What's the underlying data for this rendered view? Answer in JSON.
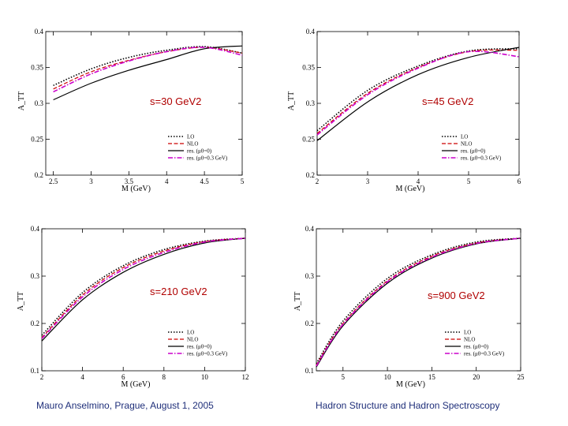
{
  "footer": {
    "author": "Mauro Anselmino",
    "place_date": "Prague, August 1, 2005",
    "conference": "Hadron Structure and Hadron Spectroscopy"
  },
  "colors": {
    "lo": "#000000",
    "nlo": "#cc0000",
    "res0": "#000000",
    "res03": "#cc00cc",
    "energy_label": "#b00000",
    "footer_text": "#1f2f7a"
  },
  "chart_data": [
    {
      "type": "line",
      "energy_label": "s=30 GeV2",
      "xlabel": "M (GeV)",
      "ylabel": "A_TT",
      "xlim": [
        2.4,
        5.0
      ],
      "ylim": [
        0.2,
        0.4
      ],
      "xticks": [
        2.5,
        3,
        3.5,
        4,
        4.5,
        5
      ],
      "xtick_labels": [
        "2.5",
        "3",
        "3.5",
        "4",
        "4.5",
        "5"
      ],
      "yticks": [
        0.2,
        0.25,
        0.3,
        0.35,
        0.4
      ],
      "ytick_labels": [
        "0.2",
        "0.25",
        "0.3",
        "0.35",
        "0.4"
      ],
      "legend": [
        "LO",
        "NLO",
        "res. (μ0=0)",
        "res. (μ0=0.3 GeV)"
      ],
      "legend_position": "lower-right",
      "series": [
        {
          "name": "LO",
          "style": "dotted",
          "x": [
            2.5,
            3.0,
            3.5,
            4.0,
            4.5,
            5.0
          ],
          "y": [
            0.325,
            0.348,
            0.364,
            0.374,
            0.379,
            0.37
          ]
        },
        {
          "name": "NLO",
          "style": "dashed",
          "x": [
            2.5,
            3.0,
            3.5,
            4.0,
            4.5,
            5.0
          ],
          "y": [
            0.32,
            0.344,
            0.36,
            0.372,
            0.378,
            0.37
          ]
        },
        {
          "name": "res. (μ0=0)",
          "style": "solid",
          "x": [
            2.5,
            3.0,
            3.5,
            4.0,
            4.5,
            5.0
          ],
          "y": [
            0.305,
            0.328,
            0.346,
            0.361,
            0.376,
            0.38
          ]
        },
        {
          "name": "res. (μ0=0.3 GeV)",
          "style": "dashdot",
          "x": [
            2.5,
            3.0,
            3.5,
            4.0,
            4.5,
            5.0
          ],
          "y": [
            0.316,
            0.341,
            0.359,
            0.372,
            0.378,
            0.367
          ]
        }
      ]
    },
    {
      "type": "line",
      "energy_label": "s=45 GeV2",
      "xlabel": "M (GeV)",
      "ylabel": "A_TT",
      "xlim": [
        2,
        6
      ],
      "ylim": [
        0.2,
        0.4
      ],
      "xticks": [
        2,
        3,
        4,
        5,
        6
      ],
      "xtick_labels": [
        "2",
        "3",
        "4",
        "5",
        "6"
      ],
      "yticks": [
        0.2,
        0.25,
        0.3,
        0.35,
        0.4
      ],
      "ytick_labels": [
        "0.2",
        "0.25",
        "0.3",
        "0.35",
        "0.4"
      ],
      "legend": [
        "LO",
        "NLO",
        "res. (μ0=0)",
        "res. (μ0=0.3 GeV)"
      ],
      "legend_position": "lower-right",
      "series": [
        {
          "name": "LO",
          "style": "dotted",
          "x": [
            2,
            3,
            4,
            5,
            6
          ],
          "y": [
            0.262,
            0.318,
            0.352,
            0.373,
            0.376
          ]
        },
        {
          "name": "NLO",
          "style": "dashed",
          "x": [
            2,
            3,
            4,
            5,
            6
          ],
          "y": [
            0.258,
            0.314,
            0.35,
            0.372,
            0.374
          ]
        },
        {
          "name": "res. (μ0=0)",
          "style": "solid",
          "x": [
            2,
            3,
            4,
            5,
            6
          ],
          "y": [
            0.248,
            0.302,
            0.34,
            0.364,
            0.378
          ]
        },
        {
          "name": "res. (μ0=0.3 GeV)",
          "style": "dashdot",
          "x": [
            2,
            3,
            4,
            5,
            6
          ],
          "y": [
            0.256,
            0.312,
            0.349,
            0.372,
            0.365
          ]
        }
      ]
    },
    {
      "type": "line",
      "energy_label": "s=210 GeV2",
      "xlabel": "M (GeV)",
      "ylabel": "A_TT",
      "xlim": [
        2,
        12
      ],
      "ylim": [
        0.1,
        0.4
      ],
      "xticks": [
        2,
        4,
        6,
        8,
        10,
        12
      ],
      "xtick_labels": [
        "2",
        "4",
        "6",
        "8",
        "10",
        "12"
      ],
      "yticks": [
        0.1,
        0.2,
        0.3,
        0.4
      ],
      "ytick_labels": [
        "0.1",
        "0.2",
        "0.3",
        "0.4"
      ],
      "legend": [
        "LO",
        "NLO",
        "res. (μ0=0)",
        "res. (μ0=0.3 GeV)"
      ],
      "legend_position": "lower-right",
      "series": [
        {
          "name": "LO",
          "style": "dotted",
          "x": [
            2,
            4,
            6,
            8,
            10,
            12
          ],
          "y": [
            0.175,
            0.265,
            0.322,
            0.356,
            0.374,
            0.38
          ]
        },
        {
          "name": "NLO",
          "style": "dashed",
          "x": [
            2,
            4,
            6,
            8,
            10,
            12
          ],
          "y": [
            0.17,
            0.26,
            0.318,
            0.353,
            0.373,
            0.38
          ]
        },
        {
          "name": "res. (μ0=0)",
          "style": "solid",
          "x": [
            2,
            4,
            6,
            8,
            10,
            12
          ],
          "y": [
            0.163,
            0.25,
            0.308,
            0.346,
            0.37,
            0.38
          ]
        },
        {
          "name": "res. (μ0=0.3 GeV)",
          "style": "dashdot",
          "x": [
            2,
            4,
            6,
            8,
            10,
            12
          ],
          "y": [
            0.168,
            0.256,
            0.314,
            0.35,
            0.372,
            0.38
          ]
        }
      ]
    },
    {
      "type": "line",
      "energy_label": "s=900 GeV2",
      "xlabel": "M (GeV)",
      "ylabel": "A_TT",
      "xlim": [
        2,
        25
      ],
      "ylim": [
        0.1,
        0.4
      ],
      "xticks": [
        5,
        10,
        15,
        20,
        25
      ],
      "xtick_labels": [
        "5",
        "10",
        "15",
        "20",
        "25"
      ],
      "yticks": [
        0.1,
        0.2,
        0.3,
        0.4
      ],
      "ytick_labels": [
        "0.1",
        "0.2",
        "0.3",
        "0.4"
      ],
      "legend": [
        "LO",
        "NLO",
        "res. (μ0=0)",
        "res. (μ0=0.3 GeV)"
      ],
      "legend_position": "lower-right",
      "series": [
        {
          "name": "LO",
          "style": "dotted",
          "x": [
            2,
            5,
            10,
            15,
            20,
            25
          ],
          "y": [
            0.115,
            0.205,
            0.295,
            0.345,
            0.372,
            0.38
          ]
        },
        {
          "name": "NLO",
          "style": "dashed",
          "x": [
            2,
            5,
            10,
            15,
            20,
            25
          ],
          "y": [
            0.112,
            0.2,
            0.29,
            0.342,
            0.37,
            0.38
          ]
        },
        {
          "name": "res. (μ0=0)",
          "style": "solid",
          "x": [
            2,
            5,
            10,
            15,
            20,
            25
          ],
          "y": [
            0.108,
            0.195,
            0.285,
            0.338,
            0.368,
            0.38
          ]
        },
        {
          "name": "res. (μ0=0.3 GeV)",
          "style": "dashdot",
          "x": [
            2,
            5,
            10,
            15,
            20,
            25
          ],
          "y": [
            0.11,
            0.198,
            0.288,
            0.34,
            0.369,
            0.38
          ]
        }
      ]
    }
  ]
}
